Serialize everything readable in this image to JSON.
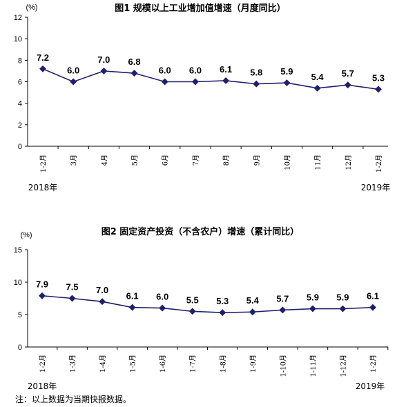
{
  "chart_data": [
    {
      "type": "line",
      "title": "图1   规模以上工业增加值增速（月度同比）",
      "unit": "(%)",
      "categories": [
        "1-2月",
        "3月",
        "4月",
        "5月",
        "6月",
        "7月",
        "8月",
        "9月",
        "10月",
        "11月",
        "12月",
        "1-2月"
      ],
      "values": [
        7.2,
        6.0,
        7.0,
        6.8,
        6.0,
        6.0,
        6.1,
        5.8,
        5.9,
        5.4,
        5.7,
        5.3
      ],
      "value_labels": [
        "7.2",
        "6.0",
        "7.0",
        "6.8",
        "6.0",
        "6.0",
        "6.1",
        "5.8",
        "5.9",
        "5.4",
        "5.7",
        "5.3"
      ],
      "ylim": [
        0,
        12
      ],
      "yticks": [
        "0",
        "2",
        "4",
        "6",
        "8",
        "10",
        "12"
      ],
      "year_labels": [
        "2018年",
        "2019年"
      ],
      "grid": false,
      "series_color": "#1f1f6e"
    },
    {
      "type": "line",
      "title": "图2   固定资产投资（不含农户）增速（累计同比）",
      "unit": "(%)",
      "categories": [
        "1-2月",
        "1-3月",
        "1-4月",
        "1-5月",
        "1-6月",
        "1-7月",
        "1-8月",
        "1-9月",
        "1-10月",
        "1-11月",
        "1-12月",
        "1-2月"
      ],
      "values": [
        7.9,
        7.5,
        7.0,
        6.1,
        6.0,
        5.5,
        5.3,
        5.4,
        5.7,
        5.9,
        5.9,
        6.1
      ],
      "value_labels": [
        "7.9",
        "7.5",
        "7.0",
        "6.1",
        "6.0",
        "5.5",
        "5.3",
        "5.4",
        "5.7",
        "5.9",
        "5.9",
        "6.1"
      ],
      "ylim": [
        0,
        15
      ],
      "yticks": [
        "0",
        "5",
        "10",
        "15"
      ],
      "year_labels": [
        "2018年",
        "2019年"
      ],
      "grid": false,
      "series_color": "#1f1f6e"
    }
  ],
  "note": "注：以上数据为当期快报数据。"
}
